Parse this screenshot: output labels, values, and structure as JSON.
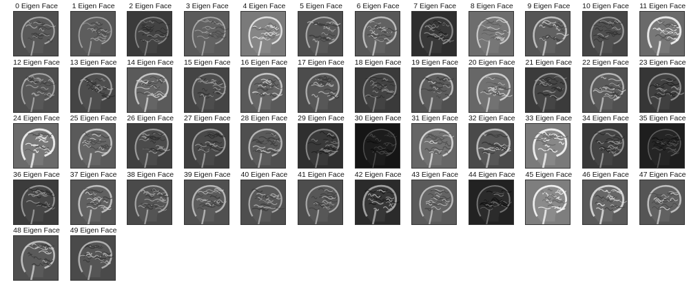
{
  "figure": {
    "columns": 12,
    "faces": [
      {
        "label": "0 Eigen Face",
        "tone": "#4f4f4f",
        "contrast": 0.55
      },
      {
        "label": "1 Eigen Face",
        "tone": "#555555",
        "contrast": 0.45
      },
      {
        "label": "2 Eigen Face",
        "tone": "#3a3a3a",
        "contrast": 0.45
      },
      {
        "label": "3 Eigen Face",
        "tone": "#5a5a5a",
        "contrast": 0.45
      },
      {
        "label": "4 Eigen Face",
        "tone": "#7a7a7a",
        "contrast": 0.7
      },
      {
        "label": "5 Eigen Face",
        "tone": "#4e4e4e",
        "contrast": 0.6
      },
      {
        "label": "6 Eigen Face",
        "tone": "#575757",
        "contrast": 0.7
      },
      {
        "label": "7 Eigen Face",
        "tone": "#2e2e2e",
        "contrast": 0.6
      },
      {
        "label": "8 Eigen Face",
        "tone": "#6d6d6d",
        "contrast": 0.6
      },
      {
        "label": "9 Eigen Face",
        "tone": "#555555",
        "contrast": 0.75
      },
      {
        "label": "10 Eigen Face",
        "tone": "#454545",
        "contrast": 0.55
      },
      {
        "label": "11 Eigen Face",
        "tone": "#6a6a6a",
        "contrast": 0.95
      },
      {
        "label": "12 Eigen Face",
        "tone": "#4e4e4e",
        "contrast": 0.55
      },
      {
        "label": "13 Eigen Face",
        "tone": "#444444",
        "contrast": 0.6
      },
      {
        "label": "14 Eigen Face",
        "tone": "#5a5a5a",
        "contrast": 0.75
      },
      {
        "label": "15 Eigen Face",
        "tone": "#444444",
        "contrast": 0.55
      },
      {
        "label": "16 Eigen Face",
        "tone": "#595959",
        "contrast": 0.75
      },
      {
        "label": "17 Eigen Face",
        "tone": "#4c4c4c",
        "contrast": 0.65
      },
      {
        "label": "18 Eigen Face",
        "tone": "#3a3a3a",
        "contrast": 0.5
      },
      {
        "label": "19 Eigen Face",
        "tone": "#505050",
        "contrast": 0.75
      },
      {
        "label": "20 Eigen Face",
        "tone": "#676767",
        "contrast": 0.7
      },
      {
        "label": "21 Eigen Face",
        "tone": "#3b3b3b",
        "contrast": 0.6
      },
      {
        "label": "22 Eigen Face",
        "tone": "#505050",
        "contrast": 0.7
      },
      {
        "label": "23 Eigen Face",
        "tone": "#363636",
        "contrast": 0.6
      },
      {
        "label": "24 Eigen Face",
        "tone": "#6a6a6a",
        "contrast": 0.95
      },
      {
        "label": "25 Eigen Face",
        "tone": "#5a5a5a",
        "contrast": 0.75
      },
      {
        "label": "26 Eigen Face",
        "tone": "#404040",
        "contrast": 0.6
      },
      {
        "label": "27 Eigen Face",
        "tone": "#3f3f3f",
        "contrast": 0.6
      },
      {
        "label": "28 Eigen Face",
        "tone": "#4f4f4f",
        "contrast": 0.7
      },
      {
        "label": "29 Eigen Face",
        "tone": "#2f2f2f",
        "contrast": 0.55
      },
      {
        "label": "30 Eigen Face",
        "tone": "#151515",
        "contrast": 0.25
      },
      {
        "label": "31 Eigen Face",
        "tone": "#666666",
        "contrast": 0.75
      },
      {
        "label": "32 Eigen Face",
        "tone": "#4a4a4a",
        "contrast": 0.8
      },
      {
        "label": "33 Eigen Face",
        "tone": "#7a7a7a",
        "contrast": 0.95
      },
      {
        "label": "34 Eigen Face",
        "tone": "#3a3a3a",
        "contrast": 0.6
      },
      {
        "label": "35 Eigen Face",
        "tone": "#1e1e1e",
        "contrast": 0.3
      },
      {
        "label": "36 Eigen Face",
        "tone": "#3c3c3c",
        "contrast": 0.6
      },
      {
        "label": "37 Eigen Face",
        "tone": "#555555",
        "contrast": 0.75
      },
      {
        "label": "38 Eigen Face",
        "tone": "#4a4a4a",
        "contrast": 0.6
      },
      {
        "label": "39 Eigen Face",
        "tone": "#505050",
        "contrast": 0.7
      },
      {
        "label": "40 Eigen Face",
        "tone": "#4e4e4e",
        "contrast": 0.6
      },
      {
        "label": "41 Eigen Face",
        "tone": "#4d4d4d",
        "contrast": 0.6
      },
      {
        "label": "42 Eigen Face",
        "tone": "#2b2b2b",
        "contrast": 0.85
      },
      {
        "label": "43 Eigen Face",
        "tone": "#5a5a5a",
        "contrast": 0.65
      },
      {
        "label": "44 Eigen Face",
        "tone": "#222222",
        "contrast": 0.5
      },
      {
        "label": "45 Eigen Face",
        "tone": "#7e7e7e",
        "contrast": 0.85
      },
      {
        "label": "46 Eigen Face",
        "tone": "#5a5a5a",
        "contrast": 0.9
      },
      {
        "label": "47 Eigen Face",
        "tone": "#555555",
        "contrast": 0.75
      },
      {
        "label": "48 Eigen Face",
        "tone": "#4f4f4f",
        "contrast": 0.8
      },
      {
        "label": "49 Eigen Face",
        "tone": "#4a4a4a",
        "contrast": 0.7
      }
    ]
  }
}
